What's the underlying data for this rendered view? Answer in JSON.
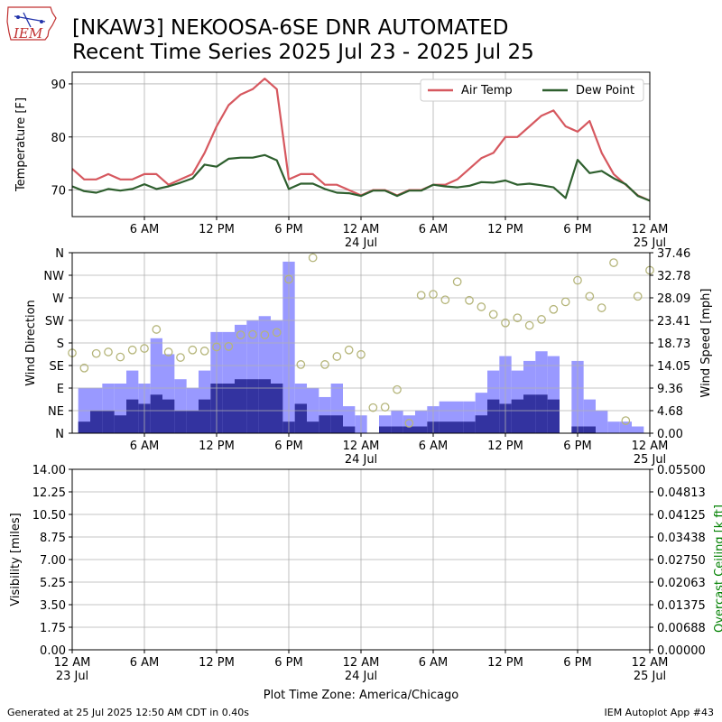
{
  "header": {
    "title_line1": "[NKAW3] NEKOOSA-6SE DNR AUTOMATED",
    "title_line2": "Recent Time Series 2025 Jul 23 - 2025 Jul 25",
    "logo_text": "IEM"
  },
  "footer": {
    "generated": "Generated at 25 Jul 2025 12:50 AM CDT in 0.40s",
    "app": "IEM Autoplot App #43"
  },
  "x_axis_label": "Plot Time Zone: America/Chicago",
  "colors": {
    "air_temp": "#d6585f",
    "dew_point": "#2e5f2e",
    "wind_gust_bar": "#9999ff",
    "wind_speed_bar": "#3333a0",
    "wind_dir_marker": "#b5b57a",
    "ceiling_label": "#008000",
    "grid": "#b0b0b0"
  },
  "chart_data": [
    {
      "type": "line",
      "ylabel": "Temperature [F]",
      "ylim": [
        65,
        92.2
      ],
      "y_ticks": [
        "70",
        "80",
        "90"
      ],
      "x_range_hours": [
        0,
        48
      ],
      "x_ticks": [
        {
          "h": 6,
          "label": "6 AM",
          "sub": ""
        },
        {
          "h": 12,
          "label": "12 PM",
          "sub": ""
        },
        {
          "h": 18,
          "label": "6 PM",
          "sub": ""
        },
        {
          "h": 24,
          "label": "12 AM",
          "sub": "24 Jul"
        },
        {
          "h": 30,
          "label": "6 AM",
          "sub": ""
        },
        {
          "h": 36,
          "label": "12 PM",
          "sub": ""
        },
        {
          "h": 42,
          "label": "6 PM",
          "sub": ""
        },
        {
          "h": 48,
          "label": "12 AM",
          "sub": "25 Jul"
        }
      ],
      "grid": true,
      "legend": "top-right",
      "series": [
        {
          "name": "Air Temp",
          "x": [
            0,
            1,
            2,
            3,
            4,
            5,
            6,
            7,
            8,
            9,
            10,
            11,
            12,
            13,
            14,
            15,
            16,
            17,
            18,
            19,
            20,
            21,
            22,
            23,
            24,
            25,
            26,
            27,
            28,
            29,
            30,
            31,
            32,
            33,
            34,
            35,
            36,
            37,
            38,
            39,
            40,
            41,
            42,
            43,
            44,
            45,
            46,
            47,
            48
          ],
          "y": [
            74,
            72,
            72,
            73,
            72,
            72,
            73,
            73,
            71,
            72,
            73,
            77,
            82,
            86,
            88,
            89,
            91,
            89,
            72,
            73,
            73,
            71,
            71,
            70,
            69,
            70,
            70,
            69,
            70,
            70,
            71,
            71,
            72,
            74,
            76,
            77,
            80,
            80,
            82,
            84,
            85,
            82,
            81,
            83,
            77,
            73,
            71,
            69,
            68
          ]
        },
        {
          "name": "Dew Point",
          "x": [
            0,
            1,
            2,
            3,
            4,
            5,
            6,
            7,
            8,
            9,
            10,
            11,
            12,
            13,
            14,
            15,
            16,
            17,
            18,
            19,
            20,
            21,
            22,
            23,
            24,
            25,
            26,
            27,
            28,
            29,
            30,
            31,
            32,
            33,
            34,
            35,
            36,
            37,
            38,
            39,
            40,
            41,
            42,
            43,
            44,
            45,
            46,
            47,
            48
          ],
          "y": [
            70.7,
            69.8,
            69.5,
            70.2,
            69.9,
            70.2,
            71.1,
            70.2,
            70.7,
            71.4,
            72.2,
            74.8,
            74.4,
            75.9,
            76.1,
            76.1,
            76.6,
            75.6,
            70.2,
            71.2,
            71.2,
            70.2,
            69.5,
            69.4,
            68.9,
            69.9,
            69.9,
            68.9,
            69.9,
            69.9,
            71.0,
            70.7,
            70.5,
            70.8,
            71.5,
            71.4,
            71.8,
            71.0,
            71.2,
            70.9,
            70.5,
            68.5,
            75.7,
            73.2,
            73.6,
            72.2,
            71.1,
            68.9,
            68.0
          ]
        }
      ]
    },
    {
      "type": "bar",
      "ylabel": "Wind Direction",
      "y2label": "Wind Speed [mph]",
      "direction_ticks": [
        "N",
        "NE",
        "E",
        "SE",
        "S",
        "SW",
        "W",
        "NW",
        "N"
      ],
      "speed_ticks": [
        "0.00",
        "4.68",
        "9.36",
        "14.05",
        "18.73",
        "23.41",
        "28.09",
        "32.78",
        "37.46"
      ],
      "speed_max": 37.46,
      "grid": true,
      "x_range_hours": [
        0,
        48
      ],
      "gust_mph": [
        {
          "h": 1,
          "v": 9.4
        },
        {
          "h": 2,
          "v": 9.4
        },
        {
          "h": 3,
          "v": 10.3
        },
        {
          "h": 4,
          "v": 10.3
        },
        {
          "h": 5,
          "v": 13.0
        },
        {
          "h": 6,
          "v": 10.3
        },
        {
          "h": 7,
          "v": 19.7
        },
        {
          "h": 8,
          "v": 16.4
        },
        {
          "h": 9,
          "v": 11.2
        },
        {
          "h": 10,
          "v": 9.4
        },
        {
          "h": 11,
          "v": 13.0
        },
        {
          "h": 12,
          "v": 21.0
        },
        {
          "h": 13,
          "v": 21.0
        },
        {
          "h": 14,
          "v": 22.5
        },
        {
          "h": 15,
          "v": 23.4
        },
        {
          "h": 16,
          "v": 24.3
        },
        {
          "h": 17,
          "v": 23.4
        },
        {
          "h": 18,
          "v": 35.6
        },
        {
          "h": 19,
          "v": 10.3
        },
        {
          "h": 20,
          "v": 9.4
        },
        {
          "h": 21,
          "v": 7.5
        },
        {
          "h": 22,
          "v": 10.3
        },
        {
          "h": 23,
          "v": 5.6
        },
        {
          "h": 24,
          "v": 3.7
        },
        {
          "h": 26,
          "v": 3.7
        },
        {
          "h": 27,
          "v": 4.7
        },
        {
          "h": 28,
          "v": 3.7
        },
        {
          "h": 29,
          "v": 4.7
        },
        {
          "h": 30,
          "v": 5.6
        },
        {
          "h": 31,
          "v": 6.6
        },
        {
          "h": 32,
          "v": 6.6
        },
        {
          "h": 33,
          "v": 6.6
        },
        {
          "h": 34,
          "v": 8.4
        },
        {
          "h": 35,
          "v": 13.0
        },
        {
          "h": 36,
          "v": 16.0
        },
        {
          "h": 37,
          "v": 13.0
        },
        {
          "h": 38,
          "v": 15.0
        },
        {
          "h": 39,
          "v": 17.0
        },
        {
          "h": 40,
          "v": 16.0
        },
        {
          "h": 42,
          "v": 15.0
        },
        {
          "h": 43,
          "v": 7.0
        },
        {
          "h": 44,
          "v": 4.7
        },
        {
          "h": 45,
          "v": 2.4
        },
        {
          "h": 46,
          "v": 2.4
        },
        {
          "h": 47,
          "v": 1.4
        }
      ],
      "speed_mph": [
        {
          "h": 1,
          "v": 2.4
        },
        {
          "h": 2,
          "v": 4.7
        },
        {
          "h": 3,
          "v": 4.7
        },
        {
          "h": 4,
          "v": 3.7
        },
        {
          "h": 5,
          "v": 7.0
        },
        {
          "h": 6,
          "v": 6.1
        },
        {
          "h": 7,
          "v": 8.0
        },
        {
          "h": 8,
          "v": 7.0
        },
        {
          "h": 9,
          "v": 4.7
        },
        {
          "h": 10,
          "v": 4.7
        },
        {
          "h": 11,
          "v": 7.0
        },
        {
          "h": 12,
          "v": 10.3
        },
        {
          "h": 13,
          "v": 10.3
        },
        {
          "h": 14,
          "v": 11.2
        },
        {
          "h": 15,
          "v": 11.2
        },
        {
          "h": 16,
          "v": 11.2
        },
        {
          "h": 17,
          "v": 10.3
        },
        {
          "h": 18,
          "v": 2.4
        },
        {
          "h": 19,
          "v": 6.1
        },
        {
          "h": 20,
          "v": 2.4
        },
        {
          "h": 21,
          "v": 3.7
        },
        {
          "h": 22,
          "v": 3.7
        },
        {
          "h": 23,
          "v": 1.4
        },
        {
          "h": 24,
          "v": 0
        },
        {
          "h": 26,
          "v": 1.4
        },
        {
          "h": 27,
          "v": 1.4
        },
        {
          "h": 28,
          "v": 1.4
        },
        {
          "h": 29,
          "v": 1.4
        },
        {
          "h": 30,
          "v": 2.4
        },
        {
          "h": 31,
          "v": 2.4
        },
        {
          "h": 32,
          "v": 2.4
        },
        {
          "h": 33,
          "v": 2.4
        },
        {
          "h": 34,
          "v": 3.7
        },
        {
          "h": 35,
          "v": 7.0
        },
        {
          "h": 36,
          "v": 6.1
        },
        {
          "h": 37,
          "v": 7.0
        },
        {
          "h": 38,
          "v": 8.0
        },
        {
          "h": 39,
          "v": 8.0
        },
        {
          "h": 40,
          "v": 7.0
        },
        {
          "h": 42,
          "v": 1.4
        },
        {
          "h": 43,
          "v": 1.4
        }
      ],
      "wind_dir_deg": [
        {
          "h": 0,
          "d": 160
        },
        {
          "h": 1,
          "d": 130
        },
        {
          "h": 2,
          "d": 159
        },
        {
          "h": 3,
          "d": 162
        },
        {
          "h": 4,
          "d": 152
        },
        {
          "h": 5,
          "d": 166
        },
        {
          "h": 6,
          "d": 169
        },
        {
          "h": 7,
          "d": 207
        },
        {
          "h": 8,
          "d": 162
        },
        {
          "h": 9,
          "d": 151
        },
        {
          "h": 10,
          "d": 166
        },
        {
          "h": 11,
          "d": 164
        },
        {
          "h": 12,
          "d": 172
        },
        {
          "h": 13,
          "d": 173
        },
        {
          "h": 14,
          "d": 196
        },
        {
          "h": 15,
          "d": 197
        },
        {
          "h": 16,
          "d": 196
        },
        {
          "h": 17,
          "d": 201
        },
        {
          "h": 18,
          "d": 307
        },
        {
          "h": 19,
          "d": 137
        },
        {
          "h": 20,
          "d": 350
        },
        {
          "h": 21,
          "d": 137
        },
        {
          "h": 22,
          "d": 153
        },
        {
          "h": 23,
          "d": 166
        },
        {
          "h": 24,
          "d": 157
        },
        {
          "h": 25,
          "d": 51
        },
        {
          "h": 26,
          "d": 52
        },
        {
          "h": 27,
          "d": 87
        },
        {
          "h": 28,
          "d": 20
        },
        {
          "h": 29,
          "d": 275
        },
        {
          "h": 30,
          "d": 277
        },
        {
          "h": 31,
          "d": 266
        },
        {
          "h": 32,
          "d": 302
        },
        {
          "h": 33,
          "d": 265
        },
        {
          "h": 34,
          "d": 252
        },
        {
          "h": 35,
          "d": 237
        },
        {
          "h": 36,
          "d": 220
        },
        {
          "h": 37,
          "d": 230
        },
        {
          "h": 38,
          "d": 215
        },
        {
          "h": 39,
          "d": 227
        },
        {
          "h": 40,
          "d": 247
        },
        {
          "h": 41,
          "d": 262
        },
        {
          "h": 42,
          "d": 305
        },
        {
          "h": 43,
          "d": 273
        },
        {
          "h": 44,
          "d": 250
        },
        {
          "h": 45,
          "d": 340
        },
        {
          "h": 46,
          "d": 25
        },
        {
          "h": 47,
          "d": 273
        },
        {
          "h": 48,
          "d": 325
        }
      ]
    },
    {
      "type": "line",
      "ylabel": "Visibility [miles]",
      "y2label": "Overcast Ceiling [k ft]",
      "y_ticks": [
        "0.00",
        "1.75",
        "3.50",
        "5.25",
        "7.00",
        "8.75",
        "10.50",
        "12.25",
        "14.00"
      ],
      "y2_ticks": [
        "0.00000",
        "0.00688",
        "0.01375",
        "0.02063",
        "0.02750",
        "0.03438",
        "0.04125",
        "0.04813",
        "0.05500"
      ],
      "grid": true,
      "x_range_hours": [
        0,
        48
      ],
      "x_ticks": [
        {
          "h": 0,
          "label": "12 AM",
          "sub": "23 Jul"
        },
        {
          "h": 6,
          "label": "6 AM",
          "sub": ""
        },
        {
          "h": 12,
          "label": "12 PM",
          "sub": ""
        },
        {
          "h": 18,
          "label": "6 PM",
          "sub": ""
        },
        {
          "h": 24,
          "label": "12 AM",
          "sub": "24 Jul"
        },
        {
          "h": 30,
          "label": "6 AM",
          "sub": ""
        },
        {
          "h": 36,
          "label": "12 PM",
          "sub": ""
        },
        {
          "h": 42,
          "label": "6 PM",
          "sub": ""
        },
        {
          "h": 48,
          "label": "12 AM",
          "sub": "25 Jul"
        }
      ],
      "series": []
    }
  ]
}
